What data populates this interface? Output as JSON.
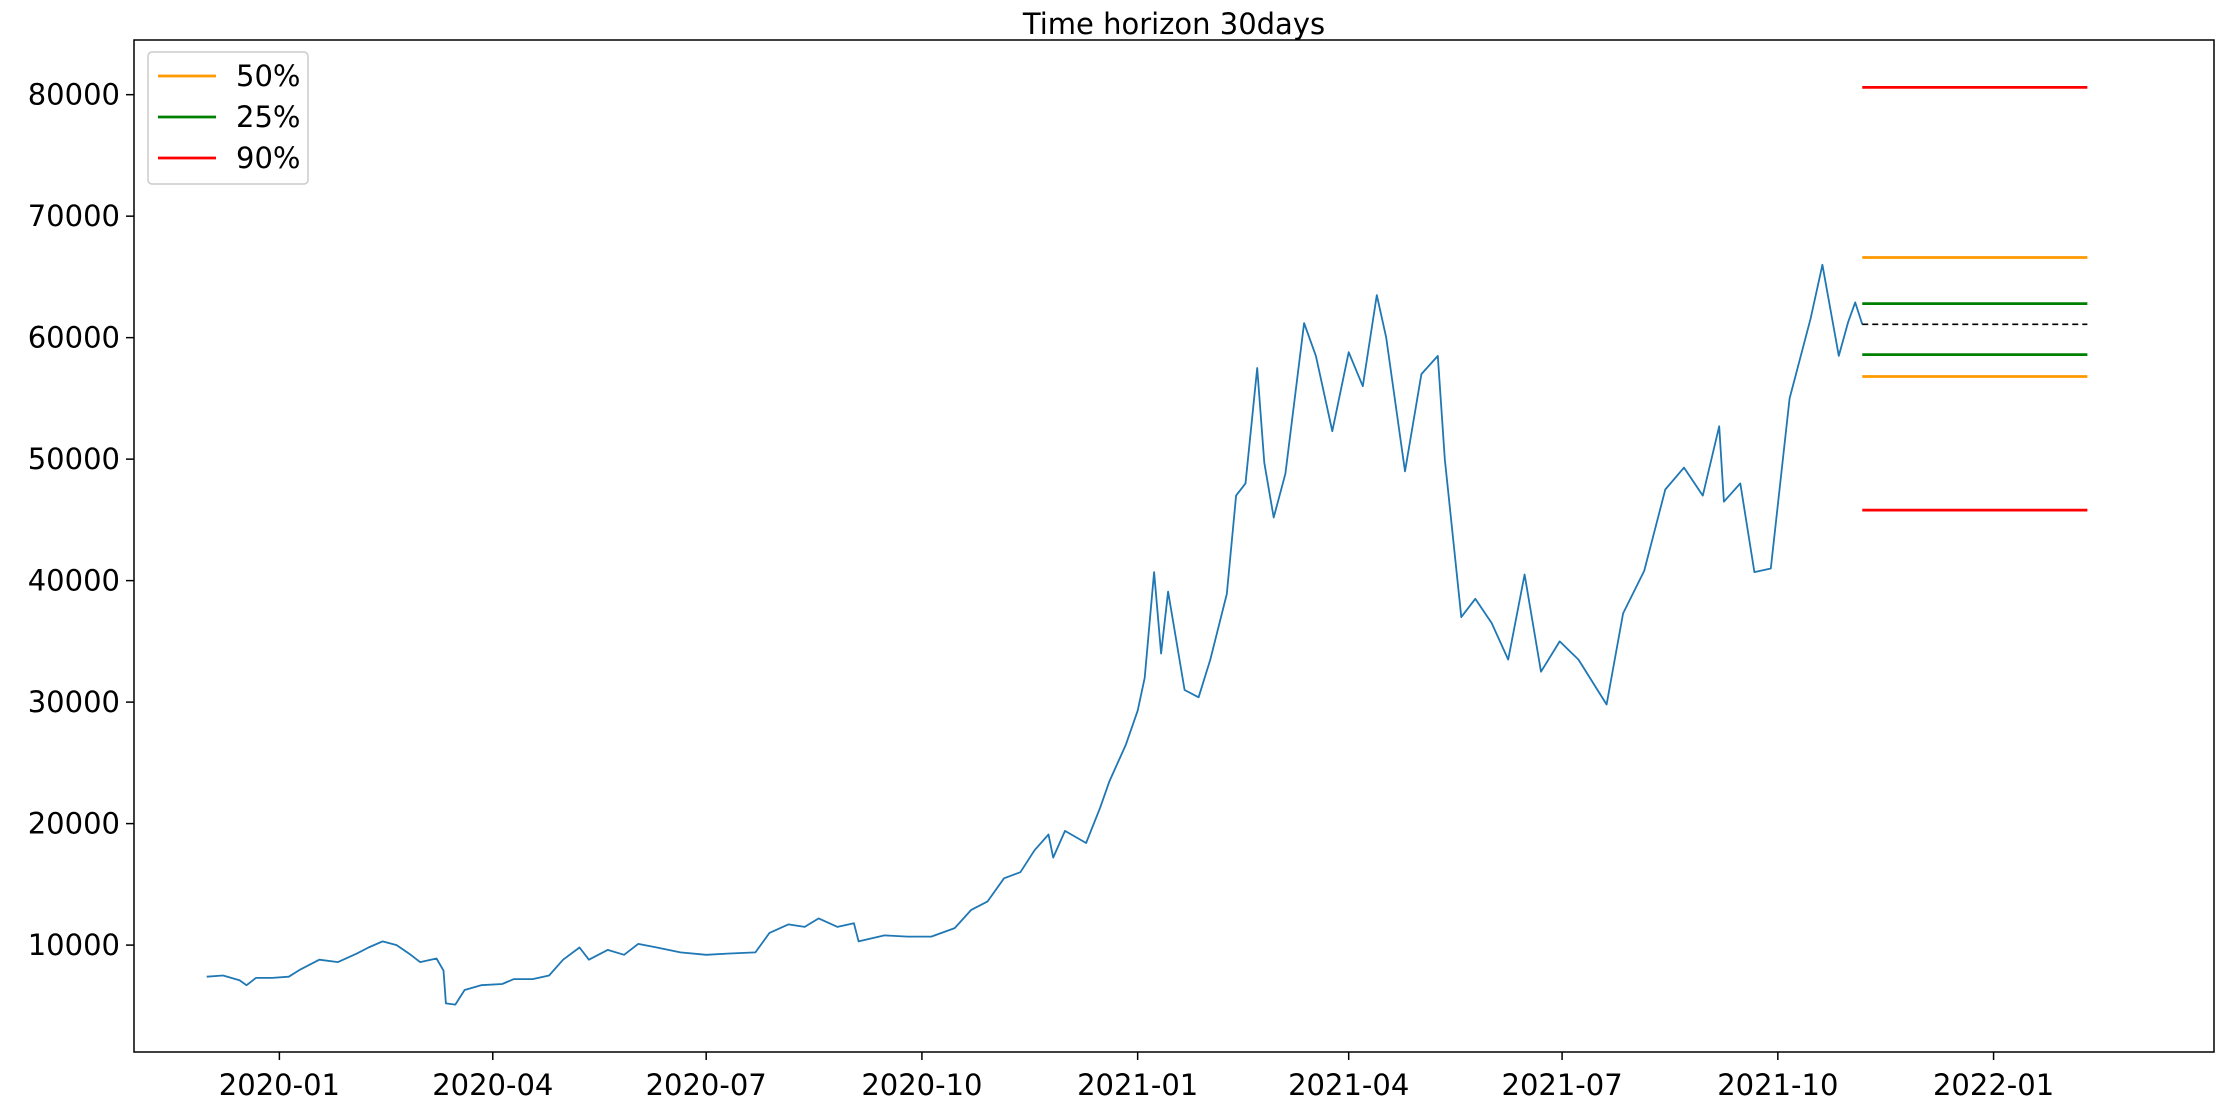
{
  "chart_data": {
    "type": "line",
    "title": "Time horizon 30days",
    "xlabel": "",
    "ylabel": "",
    "x_range": [
      "2019-10-31",
      "2022-04-05"
    ],
    "ylim": [
      1200,
      84500
    ],
    "x_ticks": [
      "2020-01",
      "2020-04",
      "2020-07",
      "2020-10",
      "2021-01",
      "2021-04",
      "2021-07",
      "2021-10",
      "2022-01"
    ],
    "y_ticks": [
      10000,
      20000,
      30000,
      40000,
      50000,
      60000,
      70000,
      80000
    ],
    "grid": false,
    "legend_position": "upper-left",
    "legend": [
      {
        "label": "50%",
        "color": "#ff9900"
      },
      {
        "label": "25%",
        "color": "#008000"
      },
      {
        "label": "90%",
        "color": "#ff0000"
      }
    ],
    "price_series": {
      "color": "#1f77b4",
      "points": [
        [
          "2019-12-01",
          7400
        ],
        [
          "2019-12-08",
          7500
        ],
        [
          "2019-12-15",
          7100
        ],
        [
          "2019-12-18",
          6700
        ],
        [
          "2019-12-22",
          7300
        ],
        [
          "2019-12-29",
          7300
        ],
        [
          "2020-01-05",
          7400
        ],
        [
          "2020-01-10",
          8000
        ],
        [
          "2020-01-18",
          8800
        ],
        [
          "2020-01-26",
          8600
        ],
        [
          "2020-02-03",
          9300
        ],
        [
          "2020-02-08",
          9800
        ],
        [
          "2020-02-14",
          10300
        ],
        [
          "2020-02-20",
          10000
        ],
        [
          "2020-02-26",
          9200
        ],
        [
          "2020-03-01",
          8600
        ],
        [
          "2020-03-08",
          8900
        ],
        [
          "2020-03-11",
          7900
        ],
        [
          "2020-03-12",
          5200
        ],
        [
          "2020-03-16",
          5100
        ],
        [
          "2020-03-20",
          6300
        ],
        [
          "2020-03-27",
          6700
        ],
        [
          "2020-04-05",
          6800
        ],
        [
          "2020-04-10",
          7200
        ],
        [
          "2020-04-18",
          7200
        ],
        [
          "2020-04-25",
          7500
        ],
        [
          "2020-05-01",
          8800
        ],
        [
          "2020-05-08",
          9800
        ],
        [
          "2020-05-12",
          8800
        ],
        [
          "2020-05-20",
          9600
        ],
        [
          "2020-05-27",
          9200
        ],
        [
          "2020-06-02",
          10100
        ],
        [
          "2020-06-10",
          9800
        ],
        [
          "2020-06-20",
          9400
        ],
        [
          "2020-07-01",
          9200
        ],
        [
          "2020-07-10",
          9300
        ],
        [
          "2020-07-22",
          9400
        ],
        [
          "2020-07-28",
          11000
        ],
        [
          "2020-08-05",
          11700
        ],
        [
          "2020-08-12",
          11500
        ],
        [
          "2020-08-18",
          12200
        ],
        [
          "2020-08-26",
          11500
        ],
        [
          "2020-09-02",
          11800
        ],
        [
          "2020-09-04",
          10300
        ],
        [
          "2020-09-15",
          10800
        ],
        [
          "2020-09-25",
          10700
        ],
        [
          "2020-10-05",
          10700
        ],
        [
          "2020-10-15",
          11400
        ],
        [
          "2020-10-22",
          12900
        ],
        [
          "2020-10-29",
          13600
        ],
        [
          "2020-11-05",
          15500
        ],
        [
          "2020-11-12",
          16000
        ],
        [
          "2020-11-18",
          17800
        ],
        [
          "2020-11-24",
          19100
        ],
        [
          "2020-11-26",
          17200
        ],
        [
          "2020-12-01",
          19400
        ],
        [
          "2020-12-10",
          18400
        ],
        [
          "2020-12-16",
          21300
        ],
        [
          "2020-12-20",
          23500
        ],
        [
          "2020-12-27",
          26500
        ],
        [
          "2021-01-01",
          29300
        ],
        [
          "2021-01-04",
          32000
        ],
        [
          "2021-01-08",
          40700
        ],
        [
          "2021-01-11",
          34000
        ],
        [
          "2021-01-14",
          39100
        ],
        [
          "2021-01-21",
          31000
        ],
        [
          "2021-01-27",
          30400
        ],
        [
          "2021-02-01",
          33500
        ],
        [
          "2021-02-08",
          38900
        ],
        [
          "2021-02-12",
          47000
        ],
        [
          "2021-02-16",
          48000
        ],
        [
          "2021-02-21",
          57500
        ],
        [
          "2021-02-24",
          49700
        ],
        [
          "2021-02-28",
          45200
        ],
        [
          "2021-03-05",
          48800
        ],
        [
          "2021-03-13",
          61200
        ],
        [
          "2021-03-18",
          58500
        ],
        [
          "2021-03-25",
          52300
        ],
        [
          "2021-04-01",
          58800
        ],
        [
          "2021-04-07",
          56000
        ],
        [
          "2021-04-13",
          63500
        ],
        [
          "2021-04-17",
          60000
        ],
        [
          "2021-04-25",
          49000
        ],
        [
          "2021-05-02",
          57000
        ],
        [
          "2021-05-09",
          58500
        ],
        [
          "2021-05-12",
          50000
        ],
        [
          "2021-05-19",
          37000
        ],
        [
          "2021-05-25",
          38500
        ],
        [
          "2021-06-01",
          36500
        ],
        [
          "2021-06-08",
          33500
        ],
        [
          "2021-06-15",
          40500
        ],
        [
          "2021-06-22",
          32500
        ],
        [
          "2021-06-30",
          35000
        ],
        [
          "2021-07-08",
          33500
        ],
        [
          "2021-07-20",
          29800
        ],
        [
          "2021-07-27",
          37300
        ],
        [
          "2021-08-05",
          40800
        ],
        [
          "2021-08-14",
          47500
        ],
        [
          "2021-08-22",
          49300
        ],
        [
          "2021-08-30",
          47000
        ],
        [
          "2021-09-06",
          52700
        ],
        [
          "2021-09-08",
          46500
        ],
        [
          "2021-09-15",
          48000
        ],
        [
          "2021-09-21",
          40700
        ],
        [
          "2021-09-28",
          41000
        ],
        [
          "2021-10-06",
          55000
        ],
        [
          "2021-10-15",
          61600
        ],
        [
          "2021-10-20",
          66000
        ],
        [
          "2021-10-27",
          58500
        ],
        [
          "2021-10-31",
          61300
        ],
        [
          "2021-11-03",
          62900
        ],
        [
          "2021-11-06",
          61100
        ]
      ]
    },
    "forecast": {
      "x_start": "2021-11-06",
      "x_end": "2022-02-10",
      "median": {
        "value": 61100,
        "color": "#000000",
        "dashed": true
      },
      "bands": [
        {
          "label": "50%",
          "color": "#ff9900",
          "upper": 66600,
          "lower": 56800
        },
        {
          "label": "25%",
          "color": "#008000",
          "upper": 62800,
          "lower": 58600
        },
        {
          "label": "90%",
          "color": "#ff0000",
          "upper": 80600,
          "lower": 45800
        }
      ]
    }
  }
}
